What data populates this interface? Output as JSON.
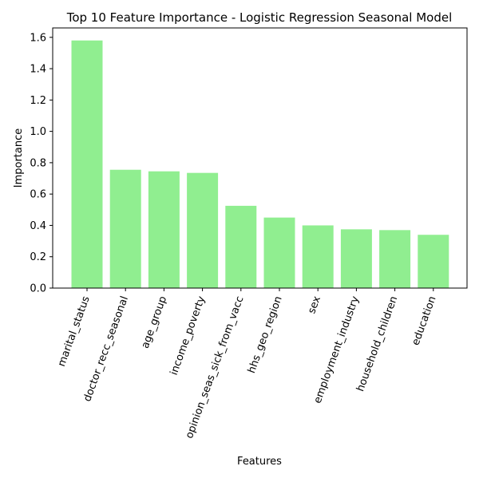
{
  "chart_data": {
    "type": "bar",
    "title": "Top 10 Feature Importance - Logistic Regression Seasonal Model",
    "xlabel": "Features",
    "ylabel": "Importance",
    "categories": [
      "marital_status",
      "doctor_recc_seasonal",
      "age_group",
      "income_poverty",
      "opinion_seas_sick_from_vacc",
      "hhs_geo_region",
      "sex",
      "employment_industry",
      "household_children",
      "education"
    ],
    "values": [
      1.58,
      0.755,
      0.745,
      0.735,
      0.525,
      0.45,
      0.4,
      0.375,
      0.37,
      0.34
    ],
    "ylim": [
      0,
      1.66
    ],
    "yticks": [
      "0.0",
      "0.2",
      "0.4",
      "0.6",
      "0.8",
      "1.0",
      "1.2",
      "1.4",
      "1.6"
    ],
    "bar_color": "#90ee90",
    "grid": false,
    "legend": "none"
  }
}
